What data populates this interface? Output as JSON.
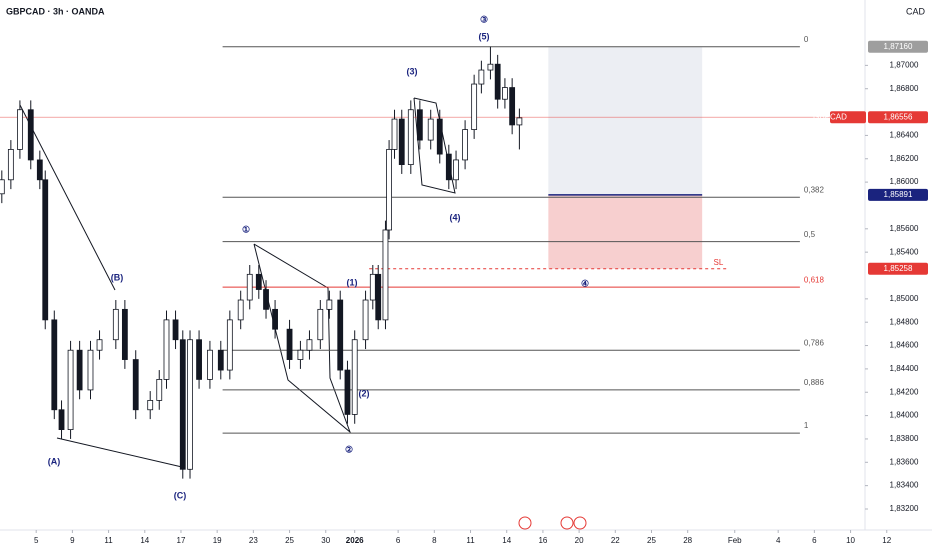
{
  "header": {
    "symbol": "GBPCAD · 3h · OANDA",
    "currency": "CAD"
  },
  "chart_data": {
    "type": "candlestick",
    "color": "#131722",
    "x": [
      0.1,
      0.6,
      1.1,
      1.7,
      2.2,
      2.5,
      3.0,
      3.4,
      3.9,
      4.4,
      5.0,
      5.5,
      6.4,
      6.9,
      7.5,
      8.3,
      8.8,
      9.2,
      9.7,
      10.1,
      10.5,
      11.0,
      11.6,
      12.2,
      12.7,
      13.3,
      13.8,
      14.3,
      14.7,
      15.2,
      16.0,
      16.6,
      17.1,
      17.7,
      18.2,
      18.8,
      19.2,
      19.6,
      20.2,
      20.6,
      20.9,
      21.3,
      21.5,
      21.8,
      22.2,
      22.7,
      23.2,
      23.8,
      24.3,
      24.8,
      25.2,
      25.7,
      26.2,
      26.6,
      27.1,
      27.5,
      27.9,
      28.3,
      28.7
    ],
    "open": [
      1.859,
      1.8602,
      1.8628,
      1.8662,
      1.8619,
      1.8602,
      1.8482,
      1.8405,
      1.8388,
      1.8456,
      1.8422,
      1.8456,
      1.8465,
      1.8491,
      1.8448,
      1.8405,
      1.8413,
      1.8431,
      1.8482,
      1.8465,
      1.8354,
      1.8465,
      1.8431,
      1.8456,
      1.8439,
      1.8482,
      1.8499,
      1.8521,
      1.8508,
      1.8491,
      1.8474,
      1.8448,
      1.8456,
      1.8465,
      1.8491,
      1.8499,
      1.8439,
      1.8401,
      1.8465,
      1.8499,
      1.8521,
      1.8482,
      1.8559,
      1.8628,
      1.8654,
      1.8615,
      1.8662,
      1.8636,
      1.8654,
      1.8624,
      1.8602,
      1.8619,
      1.8645,
      1.8684,
      1.8696,
      1.8701,
      1.8671,
      1.8681,
      1.8649
    ],
    "high": [
      1.861,
      1.8636,
      1.867,
      1.867,
      1.8627,
      1.861,
      1.849,
      1.8413,
      1.8464,
      1.8464,
      1.8464,
      1.8473,
      1.8499,
      1.8499,
      1.8456,
      1.8421,
      1.8439,
      1.849,
      1.849,
      1.8473,
      1.8473,
      1.8473,
      1.8464,
      1.8464,
      1.849,
      1.8507,
      1.8529,
      1.8529,
      1.8516,
      1.8499,
      1.8482,
      1.8464,
      1.8473,
      1.8499,
      1.8507,
      1.8507,
      1.8447,
      1.8473,
      1.8507,
      1.8529,
      1.8529,
      1.8567,
      1.8636,
      1.8662,
      1.8662,
      1.867,
      1.867,
      1.8662,
      1.8662,
      1.8632,
      1.8627,
      1.8653,
      1.8692,
      1.8704,
      1.8716,
      1.8709,
      1.8689,
      1.8689,
      1.8663
    ],
    "low": [
      1.8582,
      1.8594,
      1.862,
      1.8611,
      1.8594,
      1.8474,
      1.8397,
      1.838,
      1.838,
      1.8414,
      1.8414,
      1.8448,
      1.8457,
      1.844,
      1.8397,
      1.8397,
      1.8405,
      1.8423,
      1.8457,
      1.8346,
      1.8346,
      1.8423,
      1.8423,
      1.8431,
      1.8431,
      1.8474,
      1.8491,
      1.85,
      1.8483,
      1.8466,
      1.844,
      1.844,
      1.8448,
      1.8457,
      1.8483,
      1.8431,
      1.8393,
      1.8393,
      1.8457,
      1.8491,
      1.8474,
      1.8474,
      1.8551,
      1.862,
      1.8607,
      1.8607,
      1.8628,
      1.8628,
      1.8616,
      1.8594,
      1.8594,
      1.8611,
      1.8637,
      1.8676,
      1.8688,
      1.8663,
      1.8663,
      1.8641,
      1.8628
    ],
    "close": [
      1.8602,
      1.8628,
      1.8662,
      1.8619,
      1.8602,
      1.8482,
      1.8405,
      1.8388,
      1.8456,
      1.8422,
      1.8456,
      1.8465,
      1.8491,
      1.8448,
      1.8405,
      1.8413,
      1.8431,
      1.8482,
      1.8465,
      1.8354,
      1.8465,
      1.8431,
      1.8456,
      1.8439,
      1.8482,
      1.8499,
      1.8521,
      1.8508,
      1.8491,
      1.8474,
      1.8448,
      1.8456,
      1.8465,
      1.8491,
      1.8499,
      1.8439,
      1.8401,
      1.8465,
      1.8499,
      1.8521,
      1.8482,
      1.8559,
      1.8628,
      1.8654,
      1.8615,
      1.8662,
      1.8636,
      1.8654,
      1.8624,
      1.8602,
      1.8619,
      1.8645,
      1.8684,
      1.8696,
      1.8701,
      1.8671,
      1.8681,
      1.8649,
      1.8655
    ],
    "xlim": [
      0,
      51.5
    ],
    "xticks": [
      {
        "value": 2,
        "label": "5"
      },
      {
        "value": 4,
        "label": "9"
      },
      {
        "value": 6,
        "label": "11"
      },
      {
        "value": 8,
        "label": "14"
      },
      {
        "value": 10,
        "label": "17"
      },
      {
        "value": 12,
        "label": "19"
      },
      {
        "value": 14,
        "label": "23"
      },
      {
        "value": 16,
        "label": "25"
      },
      {
        "value": 18,
        "label": "30"
      },
      {
        "value": 19.6,
        "label": "2026"
      },
      {
        "value": 22,
        "label": "6"
      },
      {
        "value": 24,
        "label": "8"
      },
      {
        "value": 26,
        "label": "11"
      },
      {
        "value": 28,
        "label": "14"
      },
      {
        "value": 30,
        "label": "16"
      },
      {
        "value": 32,
        "label": "20"
      },
      {
        "value": 34,
        "label": "22"
      },
      {
        "value": 36,
        "label": "25"
      },
      {
        "value": 38,
        "label": "28"
      },
      {
        "value": 40.6,
        "label": "Feb"
      },
      {
        "value": 43,
        "label": "4"
      },
      {
        "value": 45,
        "label": "6"
      },
      {
        "value": 47,
        "label": "10"
      },
      {
        "value": 49,
        "label": "12"
      }
    ],
    "ylim": [
      1.8302,
      1.8756
    ],
    "yticks": [
      {
        "value": 1.87,
        "label": "1,87000"
      },
      {
        "value": 1.868,
        "label": "1,86800"
      },
      {
        "value": 1.864,
        "label": "1,86400"
      },
      {
        "value": 1.862,
        "label": "1,86200"
      },
      {
        "value": 1.86,
        "label": "1,86000"
      },
      {
        "value": 1.856,
        "label": "1,85600"
      },
      {
        "value": 1.854,
        "label": "1,85400"
      },
      {
        "value": 1.85,
        "label": "1,85000"
      },
      {
        "value": 1.848,
        "label": "1,84800"
      },
      {
        "value": 1.846,
        "label": "1,84600"
      },
      {
        "value": 1.844,
        "label": "1,84400"
      },
      {
        "value": 1.842,
        "label": "1,84200"
      },
      {
        "value": 1.84,
        "label": "1,84000"
      },
      {
        "value": 1.838,
        "label": "1,83800"
      },
      {
        "value": 1.836,
        "label": "1,83600"
      },
      {
        "value": 1.834,
        "label": "1,83400"
      },
      {
        "value": 1.832,
        "label": "1,83200"
      }
    ],
    "grid": false,
    "fib_range": [
      12.3,
      44.2
    ],
    "fib_levels": [
      {
        "level": "0",
        "value": 1.8716,
        "color": "#555555"
      },
      {
        "level": "0,382",
        "value": 1.8587,
        "color": "#555555"
      },
      {
        "level": "0,5",
        "value": 1.8549,
        "color": "#555555"
      },
      {
        "level": "0,618",
        "value": 1.851,
        "color": "#e53935"
      },
      {
        "level": "0,786",
        "value": 1.8456,
        "color": "#555555"
      },
      {
        "level": "0,886",
        "value": 1.8422,
        "color": "#555555"
      },
      {
        "level": "1",
        "value": 1.8385,
        "color": "#555555"
      }
    ],
    "position": {
      "start": 30.3,
      "end": 38.8,
      "target": 1.8716,
      "entry": 1.85891,
      "stop": 1.85258,
      "target_color": "#eceef3",
      "stop_color": "#f7cfcf",
      "entry_color": "#1a237e"
    },
    "stop_line": {
      "start": 20.4,
      "end": 40.2,
      "label": "SL",
      "color": "#e53935"
    },
    "price_markers": [
      {
        "value": 1.8716,
        "label": "1,87160",
        "color": "#9e9e9e"
      },
      {
        "value": 1.85891,
        "label": "1,85891",
        "color": "#1a237e"
      },
      {
        "value": 1.85258,
        "label": "1,85258",
        "color": "#e53935"
      }
    ],
    "last_price": {
      "symbol": "GBPCAD",
      "value": 1.86556,
      "label": "1,86556",
      "color": "#e53935"
    },
    "annotations": [
      "③",
      "(5)",
      "(3)",
      "(4)",
      "①",
      "(1)",
      "④",
      "(2)",
      "②",
      "(B)",
      "(A)",
      "(C)"
    ]
  }
}
